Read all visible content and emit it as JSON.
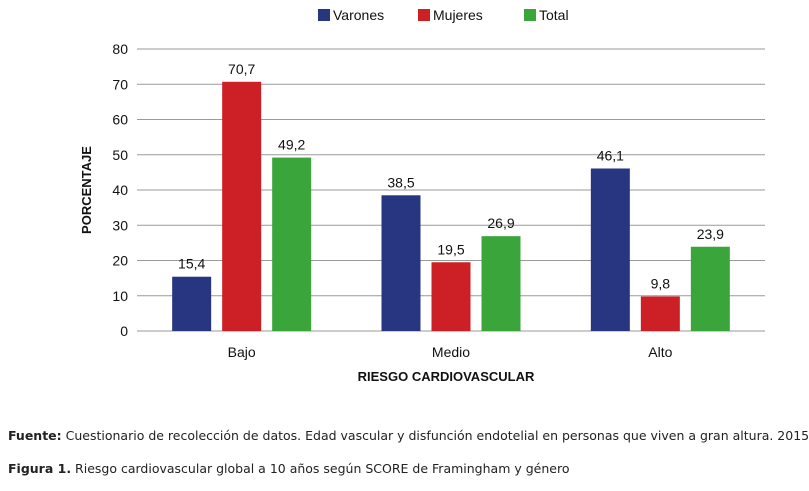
{
  "chart_data": {
    "type": "bar",
    "categories": [
      "Bajo",
      "Medio",
      "Alto"
    ],
    "series": [
      {
        "name": "Varones",
        "color": "#283580",
        "values": [
          15.4,
          38.5,
          46.1
        ],
        "labels": [
          "15,4",
          "38,5",
          "46,1"
        ]
      },
      {
        "name": "Mujeres",
        "color": "#cc1f26",
        "values": [
          70.7,
          19.5,
          9.8
        ],
        "labels": [
          "70,7",
          "19,5",
          "9,8"
        ]
      },
      {
        "name": "Total",
        "color": "#3aa53a",
        "values": [
          49.2,
          26.9,
          23.9
        ],
        "labels": [
          "49,2",
          "26,9",
          "23,9"
        ]
      }
    ],
    "xlabel": "RIESGO CARDIOVASCULAR",
    "ylabel": "PORCENTAJE",
    "ylim": [
      0,
      80
    ],
    "yticks": [
      0,
      10,
      20,
      30,
      40,
      50,
      60,
      70,
      80
    ],
    "grid": true,
    "legend": "top-center"
  },
  "captions": {
    "source_label": "Fuente:",
    "source_text": " Cuestionario de recolección de datos. Edad vascular y disfunción endotelial en personas que viven a gran altura. 2015",
    "figure_label": "Figura 1.",
    "figure_text": " Riesgo cardiovascular global a 10 años según SCORE de Framingham y género"
  }
}
